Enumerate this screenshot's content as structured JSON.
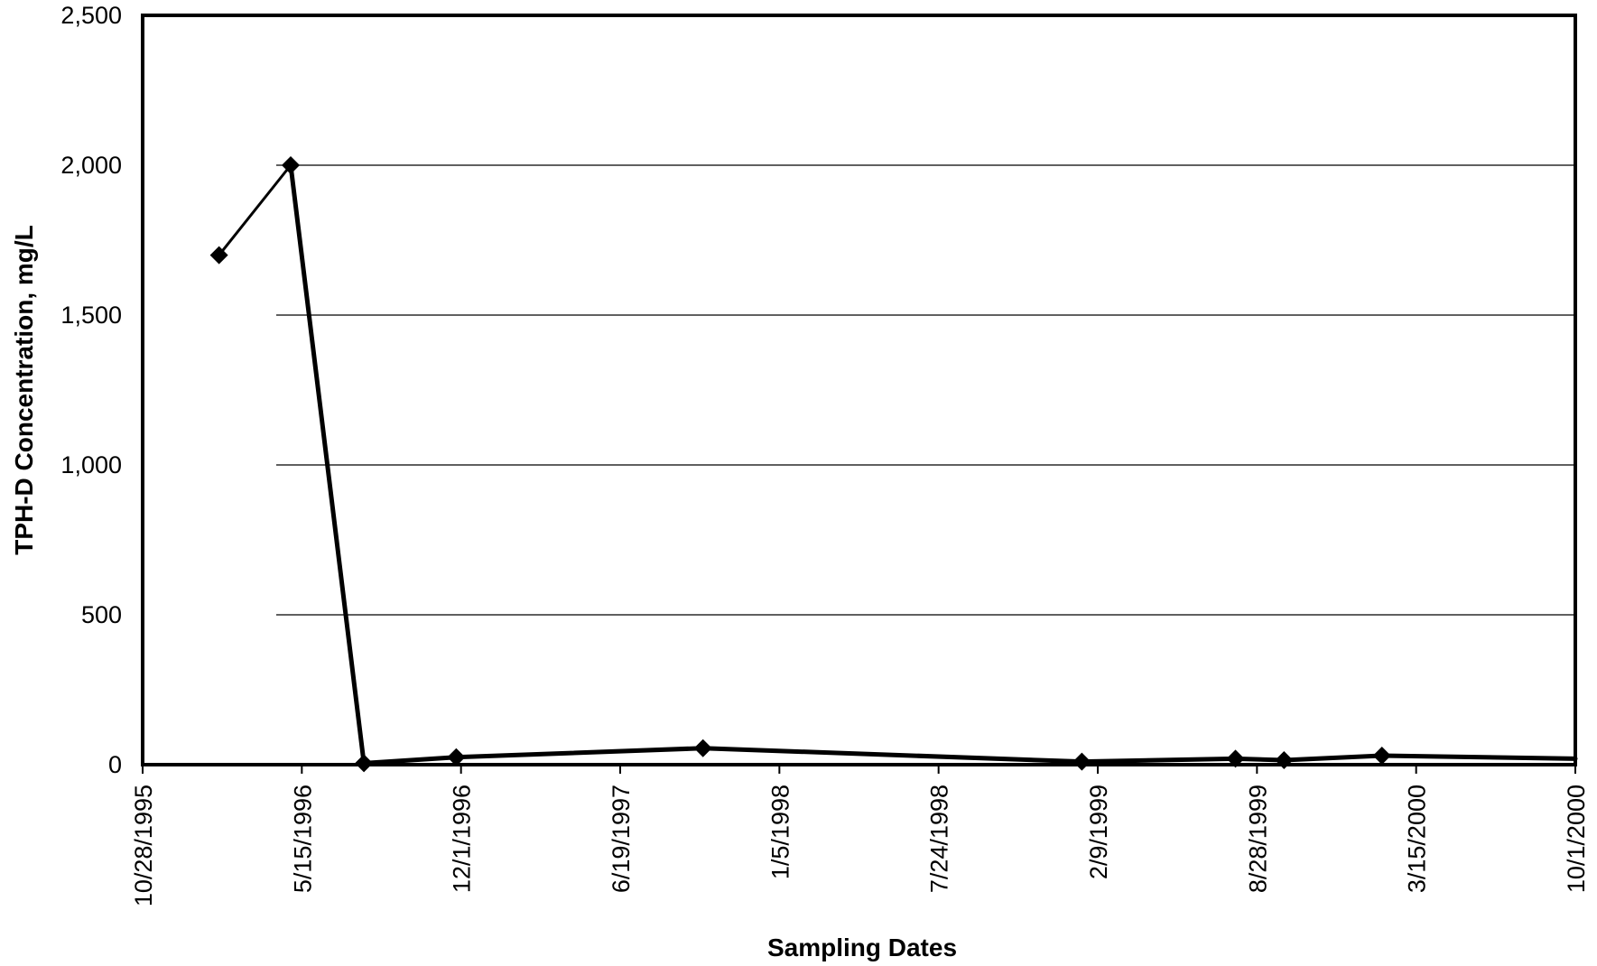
{
  "chart_data": {
    "type": "line",
    "title": "",
    "xlabel": "Sampling Dates",
    "ylabel": "TPH-D Concentration, mg/L",
    "x_ticks": [
      "10/28/1995",
      "5/15/1996",
      "12/1/1996",
      "6/19/1997",
      "1/5/1998",
      "7/24/1998",
      "2/9/1999",
      "8/28/1999",
      "3/15/2000",
      "10/1/2000"
    ],
    "xlim": [
      "10/28/1995",
      "10/1/2000"
    ],
    "y_ticks": [
      "0",
      "500",
      "1,000",
      "1,500",
      "2,000",
      "2,500"
    ],
    "ylim": [
      0,
      2500
    ],
    "grid": "horizontal",
    "legend": "none",
    "series": [
      {
        "color": "#000000",
        "marker": "diamond",
        "points": [
          {
            "x": "2/1/1996",
            "y": 1700
          },
          {
            "x": "5/1/1996",
            "y": 2000
          },
          {
            "x": "8/1/1996",
            "y": 5
          },
          {
            "x": "11/25/1996",
            "y": 25
          },
          {
            "x": "10/1/1997",
            "y": 55
          },
          {
            "x": "1/20/1999",
            "y": 10
          },
          {
            "x": "8/1/1999",
            "y": 20
          },
          {
            "x": "10/1/1999",
            "y": 15
          },
          {
            "x": "2/1/2000",
            "y": 30
          },
          {
            "x": "10/1/2000",
            "y": 20
          }
        ]
      }
    ]
  }
}
